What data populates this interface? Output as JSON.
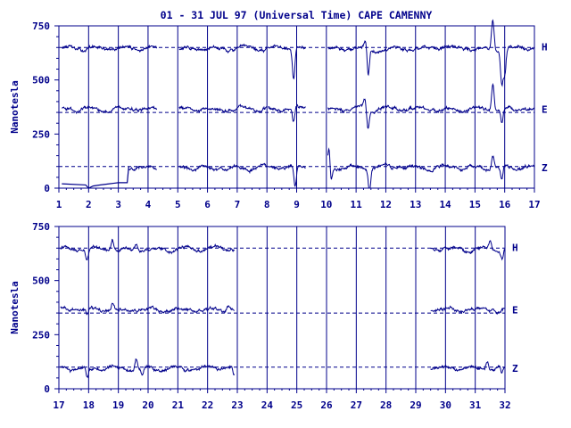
{
  "title": "01 - 31 JUL 97 (Universal Time) CAPE CAMENNY",
  "colors": {
    "ink": "#00008b"
  },
  "chart_data": [
    {
      "type": "line",
      "ylabel": "Nanotesla",
      "x_ticks": [
        "1",
        "2",
        "3",
        "4",
        "5",
        "6",
        "7",
        "8",
        "9",
        "10",
        "11",
        "12",
        "13",
        "14",
        "15",
        "16",
        "17"
      ],
      "xlim": [
        1,
        17
      ],
      "ylim": [
        0,
        750
      ],
      "y_ticks": [
        "0",
        "250",
        "500",
        "750"
      ],
      "reference_lines": [
        650,
        350,
        100
      ],
      "grid": "vertical at each day",
      "series": [
        {
          "name": "H",
          "baseline": 645,
          "segments": [
            [
              1.1,
              4.3
            ],
            [
              5.05,
              8.0
            ],
            [
              8.05,
              9.3
            ],
            [
              10.05,
              17
            ]
          ],
          "events": [
            [
              8.9,
              -140
            ],
            [
              11.4,
              -150
            ],
            [
              11.35,
              60
            ],
            [
              15.6,
              140
            ],
            [
              15.9,
              -160
            ],
            [
              16.0,
              -120
            ]
          ]
        },
        {
          "name": "E",
          "baseline": 365,
          "segments": [
            [
              1.1,
              4.3
            ],
            [
              5.05,
              8.0
            ],
            [
              8.05,
              9.3
            ],
            [
              10.05,
              17
            ]
          ],
          "events": [
            [
              8.9,
              -70
            ],
            [
              11.4,
              -90
            ],
            [
              11.3,
              40
            ],
            [
              15.6,
              130
            ],
            [
              15.9,
              -70
            ]
          ]
        },
        {
          "name": "Z",
          "baseline": 95,
          "segments": [
            [
              3.35,
              4.3
            ],
            [
              5.05,
              8.0
            ],
            [
              8.05,
              9.3
            ],
            [
              10.05,
              17
            ]
          ],
          "events": [
            [
              8.95,
              -95
            ],
            [
              10.1,
              110
            ],
            [
              10.15,
              -95
            ],
            [
              11.45,
              -100
            ],
            [
              15.6,
              60
            ],
            [
              15.9,
              -60
            ]
          ],
          "early_segment": [
            [
              1.1,
              20
            ],
            [
              1.9,
              15
            ],
            [
              2.0,
              0
            ],
            [
              2.15,
              10
            ],
            [
              2.4,
              15
            ],
            [
              2.7,
              20
            ],
            [
              3.0,
              25
            ],
            [
              3.1,
              25
            ],
            [
              3.3,
              25
            ],
            [
              3.35,
              100
            ]
          ]
        }
      ]
    },
    {
      "type": "line",
      "ylabel": "Nanotesla",
      "x_ticks": [
        "17",
        "18",
        "19",
        "20",
        "21",
        "22",
        "23",
        "24",
        "25",
        "26",
        "27",
        "28",
        "29",
        "30",
        "31",
        "32"
      ],
      "xlim": [
        17,
        32
      ],
      "ylim": [
        0,
        750
      ],
      "y_ticks": [
        "0",
        "250",
        "500",
        "750"
      ],
      "reference_lines": [
        650,
        350,
        100
      ],
      "grid": "vertical at each day",
      "series": [
        {
          "name": "H",
          "baseline": 645,
          "segments": [
            [
              17.05,
              22.9
            ],
            [
              29.5,
              32
            ]
          ],
          "events": [
            [
              17.95,
              -50
            ],
            [
              18.8,
              40
            ],
            [
              19.6,
              30
            ],
            [
              31.5,
              40
            ],
            [
              31.9,
              -40
            ]
          ]
        },
        {
          "name": "E",
          "baseline": 365,
          "segments": [
            [
              17.05,
              22.9
            ],
            [
              29.5,
              32
            ]
          ],
          "events": [
            [
              17.95,
              -30
            ],
            [
              18.8,
              30
            ],
            [
              22.7,
              20
            ],
            [
              31.6,
              20
            ]
          ]
        },
        {
          "name": "Z",
          "baseline": 95,
          "segments": [
            [
              17.05,
              22.9
            ],
            [
              29.5,
              32
            ]
          ],
          "events": [
            [
              17.95,
              -50
            ],
            [
              19.6,
              50
            ],
            [
              19.8,
              -30
            ],
            [
              22.9,
              -40
            ],
            [
              31.4,
              40
            ],
            [
              31.9,
              -30
            ]
          ]
        }
      ]
    }
  ]
}
